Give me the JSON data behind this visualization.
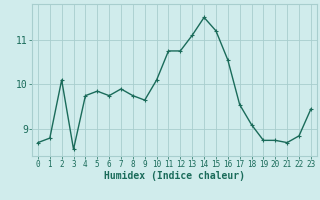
{
  "xlabel": "Humidex (Indice chaleur)",
  "ylabel": "",
  "x": [
    0,
    1,
    2,
    3,
    4,
    5,
    6,
    7,
    8,
    9,
    10,
    11,
    12,
    13,
    14,
    15,
    16,
    17,
    18,
    19,
    20,
    21,
    22,
    23
  ],
  "y": [
    8.7,
    8.8,
    10.1,
    8.55,
    9.75,
    9.85,
    9.75,
    9.9,
    9.75,
    9.65,
    10.1,
    10.75,
    10.75,
    11.1,
    11.5,
    11.2,
    10.55,
    9.55,
    9.1,
    8.75,
    8.75,
    8.7,
    8.85,
    9.45
  ],
  "line_color": "#1a6b5a",
  "marker": "+",
  "markersize": 3,
  "linewidth": 1.0,
  "bg_color": "#d0ecec",
  "grid_color": "#a8cece",
  "tick_color": "#1a6b5a",
  "label_color": "#1a6b5a",
  "ylim": [
    8.4,
    11.8
  ],
  "yticks": [
    9,
    10,
    11
  ],
  "xticks": [
    0,
    1,
    2,
    3,
    4,
    5,
    6,
    7,
    8,
    9,
    10,
    11,
    12,
    13,
    14,
    15,
    16,
    17,
    18,
    19,
    20,
    21,
    22,
    23
  ],
  "font_family": "monospace",
  "xlabel_fontsize": 7,
  "xtick_fontsize": 5.5,
  "ytick_fontsize": 7
}
